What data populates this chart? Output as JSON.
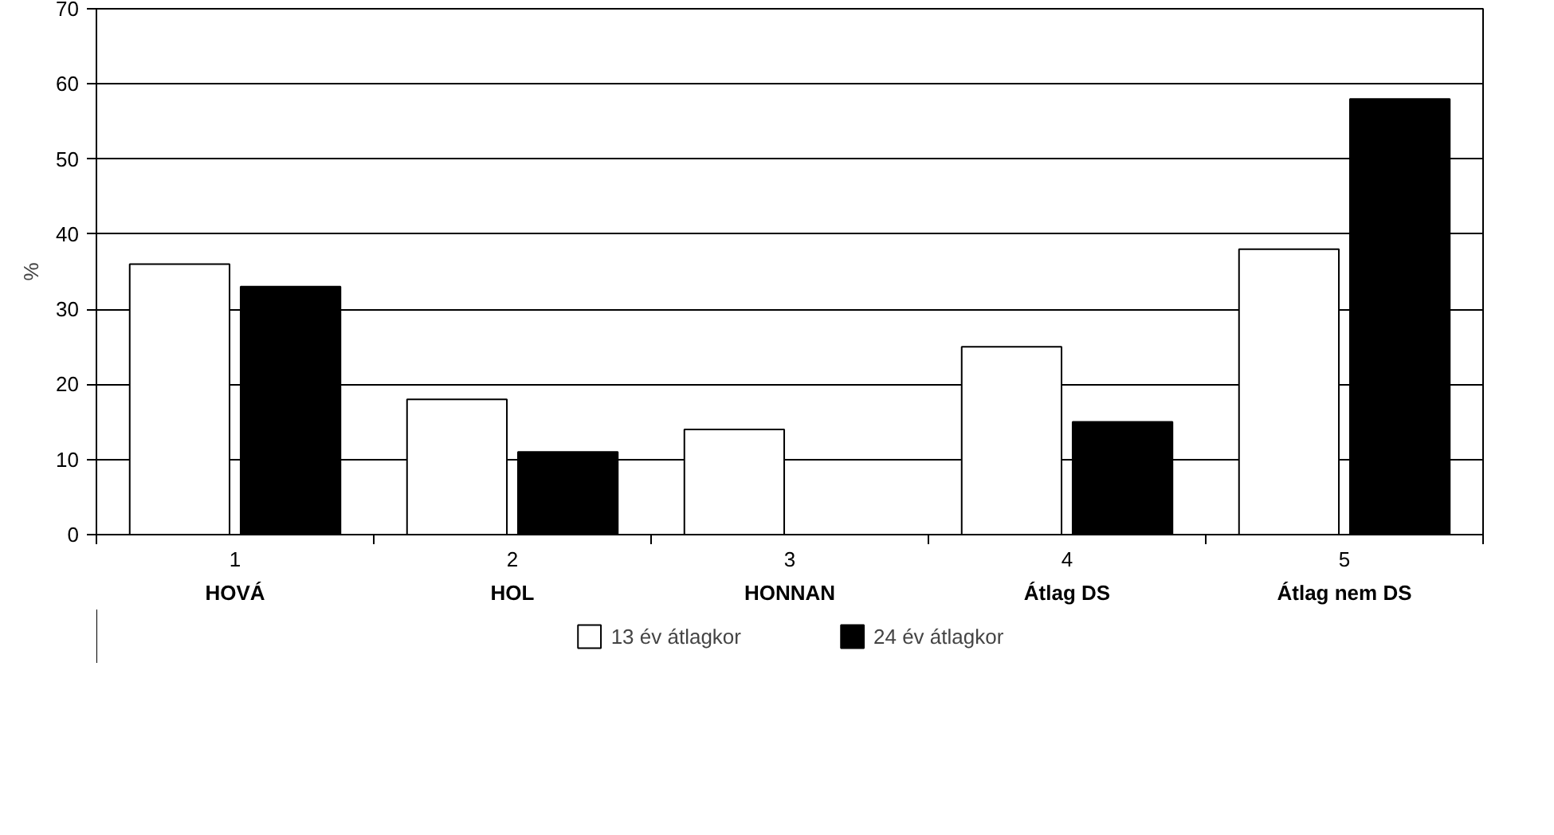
{
  "chart_data": {
    "type": "bar",
    "ylabel": "%",
    "categories": [
      "1\nHOVÁ",
      "2\nHOL",
      "3\nHONNAN",
      "4\nÁtlag DS",
      "5\nÁtlag nem DS"
    ],
    "series": [
      {
        "name": "13 év átlagkor",
        "color": "#ffffff",
        "values": [
          36,
          18,
          14,
          25,
          38
        ]
      },
      {
        "name": "24 év átlagkor",
        "color": "#000000",
        "values": [
          33,
          11,
          0,
          15,
          58
        ]
      }
    ],
    "ylim": [
      0,
      70
    ],
    "yticks": [
      0,
      10,
      20,
      30,
      40,
      50,
      60,
      70
    ],
    "grid": "y",
    "legend": "bottom"
  }
}
